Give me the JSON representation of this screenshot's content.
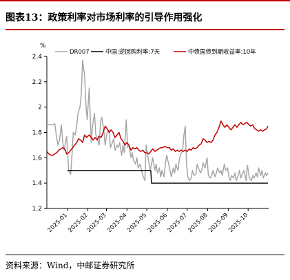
{
  "header": {
    "title": "图表13：政策利率对市场利率的引导作用强化",
    "accent_color": "#c00000"
  },
  "footer": {
    "source": "资料来源：Wind，中邮证券研究所"
  },
  "chart_data": {
    "type": "line",
    "title": "",
    "ylabel": "%",
    "xlabel": "",
    "ylim": [
      1.2,
      2.4
    ],
    "yticks": [
      1.2,
      1.4,
      1.6,
      1.8,
      2.0,
      2.2,
      2.4
    ],
    "ytick_labels": [
      "1.2",
      "1.4",
      "1.6",
      "1.8",
      "2",
      "2.2",
      "2.4"
    ],
    "x_range": [
      "2024-12-01",
      "2025-11-01"
    ],
    "xticks": [
      "2025-01",
      "2025-02",
      "2025-03",
      "2025-04",
      "2025-05",
      "2025-06",
      "2025-07",
      "2025-08",
      "2025-09",
      "2025-10"
    ],
    "grid": false,
    "legend_position": "top",
    "series": [
      {
        "name": "DR007",
        "color": "#a6a6a6",
        "points": [
          [
            "2024-12-01",
            1.86
          ],
          [
            "2024-12-05",
            1.86
          ],
          [
            "2024-12-10",
            1.86
          ],
          [
            "2024-12-13",
            1.87
          ],
          [
            "2024-12-16",
            1.75
          ],
          [
            "2024-12-18",
            1.7
          ],
          [
            "2024-12-20",
            1.74
          ],
          [
            "2024-12-23",
            1.86
          ],
          [
            "2024-12-25",
            1.72
          ],
          [
            "2024-12-27",
            1.66
          ],
          [
            "2024-12-31",
            1.77
          ],
          [
            "2025-01-03",
            1.5
          ],
          [
            "2025-01-06",
            1.47
          ],
          [
            "2025-01-08",
            1.62
          ],
          [
            "2025-01-10",
            1.8
          ],
          [
            "2025-01-13",
            1.78
          ],
          [
            "2025-01-15",
            1.85
          ],
          [
            "2025-01-17",
            1.95
          ],
          [
            "2025-01-20",
            2.0
          ],
          [
            "2025-01-22",
            2.1
          ],
          [
            "2025-01-24",
            2.37
          ],
          [
            "2025-01-27",
            2.25
          ],
          [
            "2025-01-29",
            2.02
          ],
          [
            "2025-01-31",
            1.9
          ],
          [
            "2025-02-03",
            2.15
          ],
          [
            "2025-02-06",
            1.72
          ],
          [
            "2025-02-08",
            1.85
          ],
          [
            "2025-02-11",
            1.95
          ],
          [
            "2025-02-13",
            1.78
          ],
          [
            "2025-02-15",
            1.76
          ],
          [
            "2025-02-18",
            1.7
          ],
          [
            "2025-02-20",
            1.88
          ],
          [
            "2025-02-22",
            1.92
          ],
          [
            "2025-02-25",
            1.82
          ],
          [
            "2025-02-27",
            1.7
          ],
          [
            "2025-03-02",
            1.8
          ],
          [
            "2025-03-05",
            1.82
          ],
          [
            "2025-03-07",
            1.68
          ],
          [
            "2025-03-10",
            1.72
          ],
          [
            "2025-03-12",
            1.75
          ],
          [
            "2025-03-14",
            1.66
          ],
          [
            "2025-03-17",
            1.7
          ],
          [
            "2025-03-19",
            1.68
          ],
          [
            "2025-03-21",
            1.72
          ],
          [
            "2025-03-24",
            1.62
          ],
          [
            "2025-03-26",
            1.7
          ],
          [
            "2025-03-28",
            1.64
          ],
          [
            "2025-03-31",
            1.9
          ],
          [
            "2025-04-02",
            1.68
          ],
          [
            "2025-04-04",
            1.7
          ],
          [
            "2025-04-07",
            1.6
          ],
          [
            "2025-04-09",
            1.64
          ],
          [
            "2025-04-11",
            1.58
          ],
          [
            "2025-04-14",
            1.55
          ],
          [
            "2025-04-16",
            1.6
          ],
          [
            "2025-04-18",
            1.52
          ],
          [
            "2025-04-21",
            1.55
          ],
          [
            "2025-04-23",
            1.5
          ],
          [
            "2025-04-25",
            1.46
          ],
          [
            "2025-04-28",
            1.42
          ],
          [
            "2025-04-30",
            1.7
          ],
          [
            "2025-05-06",
            1.5
          ],
          [
            "2025-05-08",
            1.55
          ],
          [
            "2025-05-10",
            1.6
          ],
          [
            "2025-05-13",
            1.5
          ],
          [
            "2025-05-15",
            1.55
          ],
          [
            "2025-05-17",
            1.48
          ],
          [
            "2025-05-20",
            1.52
          ],
          [
            "2025-05-22",
            1.45
          ],
          [
            "2025-05-24",
            1.5
          ],
          [
            "2025-05-27",
            1.45
          ],
          [
            "2025-05-29",
            1.55
          ],
          [
            "2025-05-31",
            1.62
          ],
          [
            "2025-06-03",
            1.55
          ],
          [
            "2025-06-05",
            1.5
          ],
          [
            "2025-06-07",
            1.45
          ],
          [
            "2025-06-10",
            1.52
          ],
          [
            "2025-06-12",
            1.48
          ],
          [
            "2025-06-14",
            1.55
          ],
          [
            "2025-06-17",
            1.5
          ],
          [
            "2025-06-19",
            1.58
          ],
          [
            "2025-06-21",
            1.63
          ],
          [
            "2025-06-24",
            1.65
          ],
          [
            "2025-06-26",
            1.78
          ],
          [
            "2025-06-28",
            1.85
          ],
          [
            "2025-06-30",
            1.55
          ],
          [
            "2025-07-02",
            1.45
          ],
          [
            "2025-07-04",
            1.42
          ],
          [
            "2025-07-07",
            1.44
          ],
          [
            "2025-07-09",
            1.5
          ],
          [
            "2025-07-11",
            1.46
          ],
          [
            "2025-07-14",
            1.47
          ],
          [
            "2025-07-16",
            1.55
          ],
          [
            "2025-07-18",
            1.52
          ],
          [
            "2025-07-21",
            1.48
          ],
          [
            "2025-07-23",
            1.5
          ],
          [
            "2025-07-25",
            1.56
          ],
          [
            "2025-07-28",
            1.52
          ],
          [
            "2025-07-31",
            1.6
          ],
          [
            "2025-08-02",
            1.46
          ],
          [
            "2025-08-05",
            1.44
          ],
          [
            "2025-08-07",
            1.46
          ],
          [
            "2025-08-09",
            1.5
          ],
          [
            "2025-08-12",
            1.45
          ],
          [
            "2025-08-14",
            1.48
          ],
          [
            "2025-08-16",
            1.52
          ],
          [
            "2025-08-19",
            1.48
          ],
          [
            "2025-08-21",
            1.5
          ],
          [
            "2025-08-23",
            1.46
          ],
          [
            "2025-08-26",
            1.55
          ],
          [
            "2025-08-28",
            1.5
          ],
          [
            "2025-08-31",
            1.52
          ],
          [
            "2025-09-02",
            1.45
          ],
          [
            "2025-09-04",
            1.42
          ],
          [
            "2025-09-06",
            1.46
          ],
          [
            "2025-09-09",
            1.44
          ],
          [
            "2025-09-11",
            1.48
          ],
          [
            "2025-09-13",
            1.42
          ],
          [
            "2025-09-16",
            1.46
          ],
          [
            "2025-09-18",
            1.5
          ],
          [
            "2025-09-20",
            1.44
          ],
          [
            "2025-09-23",
            1.48
          ],
          [
            "2025-09-25",
            1.5
          ],
          [
            "2025-09-28",
            1.42
          ],
          [
            "2025-09-30",
            1.54
          ],
          [
            "2025-10-03",
            1.44
          ],
          [
            "2025-10-06",
            1.42
          ],
          [
            "2025-10-08",
            1.46
          ],
          [
            "2025-10-10",
            1.44
          ],
          [
            "2025-10-13",
            1.48
          ],
          [
            "2025-10-15",
            1.45
          ],
          [
            "2025-10-17",
            1.52
          ],
          [
            "2025-10-20",
            1.46
          ],
          [
            "2025-10-22",
            1.5
          ],
          [
            "2025-10-24",
            1.44
          ],
          [
            "2025-10-27",
            1.48
          ],
          [
            "2025-10-29",
            1.46
          ],
          [
            "2025-10-31",
            1.48
          ]
        ]
      },
      {
        "name": "中国:逆回购利率:7天",
        "color": "#000000",
        "points": [
          [
            "2025-01-01",
            1.5
          ],
          [
            "2025-05-07",
            1.5
          ],
          [
            "2025-05-08",
            1.4
          ],
          [
            "2025-10-31",
            1.4
          ]
        ]
      },
      {
        "name": "中债国债到期收益率:10年",
        "color": "#c00000",
        "points": [
          [
            "2024-12-01",
            1.65
          ],
          [
            "2024-12-04",
            1.63
          ],
          [
            "2024-12-07",
            1.62
          ],
          [
            "2024-12-10",
            1.62
          ],
          [
            "2024-12-13",
            1.63
          ],
          [
            "2024-12-16",
            1.64
          ],
          [
            "2024-12-19",
            1.66
          ],
          [
            "2024-12-22",
            1.67
          ],
          [
            "2024-12-25",
            1.68
          ],
          [
            "2024-12-28",
            1.67
          ],
          [
            "2024-12-31",
            1.63
          ],
          [
            "2025-01-03",
            1.64
          ],
          [
            "2025-01-06",
            1.66
          ],
          [
            "2025-01-09",
            1.68
          ],
          [
            "2025-01-12",
            1.7
          ],
          [
            "2025-01-15",
            1.72
          ],
          [
            "2025-01-18",
            1.75
          ],
          [
            "2025-01-21",
            1.74
          ],
          [
            "2025-01-24",
            1.72
          ],
          [
            "2025-01-27",
            1.78
          ],
          [
            "2025-01-30",
            1.76
          ],
          [
            "2025-02-03",
            1.78
          ],
          [
            "2025-02-06",
            1.76
          ],
          [
            "2025-02-09",
            1.74
          ],
          [
            "2025-02-12",
            1.76
          ],
          [
            "2025-02-15",
            1.74
          ],
          [
            "2025-02-18",
            1.77
          ],
          [
            "2025-02-21",
            1.76
          ],
          [
            "2025-02-24",
            1.8
          ],
          [
            "2025-02-27",
            1.85
          ],
          [
            "2025-03-02",
            1.83
          ],
          [
            "2025-03-05",
            1.8
          ],
          [
            "2025-03-08",
            1.82
          ],
          [
            "2025-03-11",
            1.8
          ],
          [
            "2025-03-14",
            1.76
          ],
          [
            "2025-03-17",
            1.78
          ],
          [
            "2025-03-20",
            1.8
          ],
          [
            "2025-03-23",
            1.75
          ],
          [
            "2025-03-26",
            1.73
          ],
          [
            "2025-03-29",
            1.7
          ],
          [
            "2025-04-01",
            1.72
          ],
          [
            "2025-04-04",
            1.7
          ],
          [
            "2025-04-07",
            1.66
          ],
          [
            "2025-04-10",
            1.68
          ],
          [
            "2025-04-13",
            1.67
          ],
          [
            "2025-04-16",
            1.68
          ],
          [
            "2025-04-19",
            1.66
          ],
          [
            "2025-04-22",
            1.65
          ],
          [
            "2025-04-25",
            1.66
          ],
          [
            "2025-04-28",
            1.64
          ],
          [
            "2025-05-01",
            1.64
          ],
          [
            "2025-05-04",
            1.63
          ],
          [
            "2025-05-07",
            1.65
          ],
          [
            "2025-05-10",
            1.67
          ],
          [
            "2025-05-13",
            1.65
          ],
          [
            "2025-05-16",
            1.66
          ],
          [
            "2025-05-19",
            1.67
          ],
          [
            "2025-05-22",
            1.68
          ],
          [
            "2025-05-25",
            1.68
          ],
          [
            "2025-05-28",
            1.69
          ],
          [
            "2025-06-01",
            1.68
          ],
          [
            "2025-06-04",
            1.68
          ],
          [
            "2025-06-07",
            1.66
          ],
          [
            "2025-06-10",
            1.67
          ],
          [
            "2025-06-13",
            1.65
          ],
          [
            "2025-06-16",
            1.66
          ],
          [
            "2025-06-19",
            1.65
          ],
          [
            "2025-06-22",
            1.66
          ],
          [
            "2025-06-25",
            1.65
          ],
          [
            "2025-06-28",
            1.66
          ],
          [
            "2025-07-01",
            1.65
          ],
          [
            "2025-07-04",
            1.67
          ],
          [
            "2025-07-07",
            1.66
          ],
          [
            "2025-07-10",
            1.68
          ],
          [
            "2025-07-13",
            1.67
          ],
          [
            "2025-07-16",
            1.68
          ],
          [
            "2025-07-19",
            1.7
          ],
          [
            "2025-07-22",
            1.71
          ],
          [
            "2025-07-25",
            1.75
          ],
          [
            "2025-07-28",
            1.74
          ],
          [
            "2025-07-31",
            1.72
          ],
          [
            "2025-08-03",
            1.73
          ],
          [
            "2025-08-06",
            1.72
          ],
          [
            "2025-08-09",
            1.74
          ],
          [
            "2025-08-12",
            1.78
          ],
          [
            "2025-08-15",
            1.8
          ],
          [
            "2025-08-18",
            1.84
          ],
          [
            "2025-08-21",
            1.89
          ],
          [
            "2025-08-24",
            1.86
          ],
          [
            "2025-08-27",
            1.84
          ],
          [
            "2025-08-30",
            1.86
          ],
          [
            "2025-09-02",
            1.84
          ],
          [
            "2025-09-05",
            1.82
          ],
          [
            "2025-09-08",
            1.84
          ],
          [
            "2025-09-11",
            1.86
          ],
          [
            "2025-09-14",
            1.84
          ],
          [
            "2025-09-17",
            1.86
          ],
          [
            "2025-09-20",
            1.88
          ],
          [
            "2025-09-23",
            1.86
          ],
          [
            "2025-09-26",
            1.87
          ],
          [
            "2025-09-29",
            1.88
          ],
          [
            "2025-10-02",
            1.86
          ],
          [
            "2025-10-05",
            1.85
          ],
          [
            "2025-10-08",
            1.86
          ],
          [
            "2025-10-11",
            1.83
          ],
          [
            "2025-10-14",
            1.82
          ],
          [
            "2025-10-17",
            1.81
          ],
          [
            "2025-10-20",
            1.82
          ],
          [
            "2025-10-23",
            1.81
          ],
          [
            "2025-10-26",
            1.82
          ],
          [
            "2025-10-29",
            1.83
          ],
          [
            "2025-10-31",
            1.85
          ]
        ]
      }
    ]
  }
}
